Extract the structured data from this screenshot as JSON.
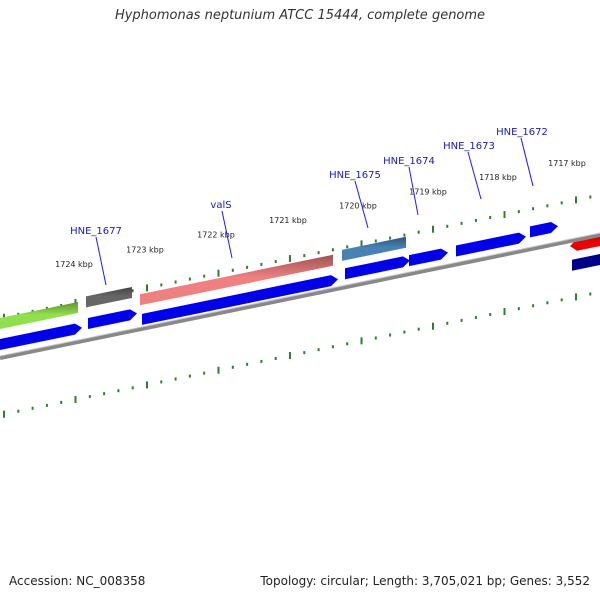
{
  "title": "Hyphomonas neptunium ATCC 15444, complete genome",
  "accession": "Accession: NC_008358",
  "summary": "Topology: circular; Length: 3,705,021 bp; Genes: 3,552",
  "colors": {
    "backbone": "#888888",
    "tick": "#2d7f2d",
    "cds": "#0000ee",
    "trna": "#f08080",
    "label_text": "#1a1ab8",
    "leader_line": "#1a1aee"
  },
  "ruler": {
    "labels": [
      "1717 kbp",
      "1718 kbp",
      "1719 kbp",
      "1720 kbp",
      "1721 kbp",
      "1722 kbp",
      "1723 kbp",
      "1724 kbp"
    ]
  },
  "gene_labels": [
    {
      "name": "HNE_1672"
    },
    {
      "name": "HNE_1673"
    },
    {
      "name": "HNE_1674"
    },
    {
      "name": "HNE_1675"
    },
    {
      "name": "valS"
    },
    {
      "name": "HNE_1677"
    }
  ],
  "features": {
    "outer_track": [
      {
        "name": "lime-gene",
        "color": "#8fe04a",
        "kind": "bar"
      },
      {
        "name": "gray-gene",
        "color": "#666666",
        "kind": "bar"
      },
      {
        "name": "trna-gene",
        "color": "#f08080",
        "kind": "bar"
      },
      {
        "name": "steelblue-gene",
        "color": "#4682b4",
        "kind": "bar"
      },
      {
        "name": "red-gene",
        "color": "#ee0000",
        "kind": "arrow-left"
      }
    ],
    "inner_track": [
      {
        "name": "cds-a",
        "color": "#0000ee",
        "kind": "arrow-right"
      },
      {
        "name": "cds-b",
        "color": "#0000ee",
        "kind": "arrow-right"
      },
      {
        "name": "cds-c",
        "color": "#0000ee",
        "kind": "arrow-right"
      },
      {
        "name": "cds-d",
        "color": "#0000ee",
        "kind": "arrow-right"
      },
      {
        "name": "cds-e",
        "color": "#0000ee",
        "kind": "arrow-right"
      },
      {
        "name": "cds-f",
        "color": "#0000ee",
        "kind": "arrow-right"
      },
      {
        "name": "cds-g",
        "color": "#0000ee",
        "kind": "arrow-right"
      },
      {
        "name": "cds-h",
        "color": "#00008b",
        "kind": "bar"
      }
    ]
  }
}
